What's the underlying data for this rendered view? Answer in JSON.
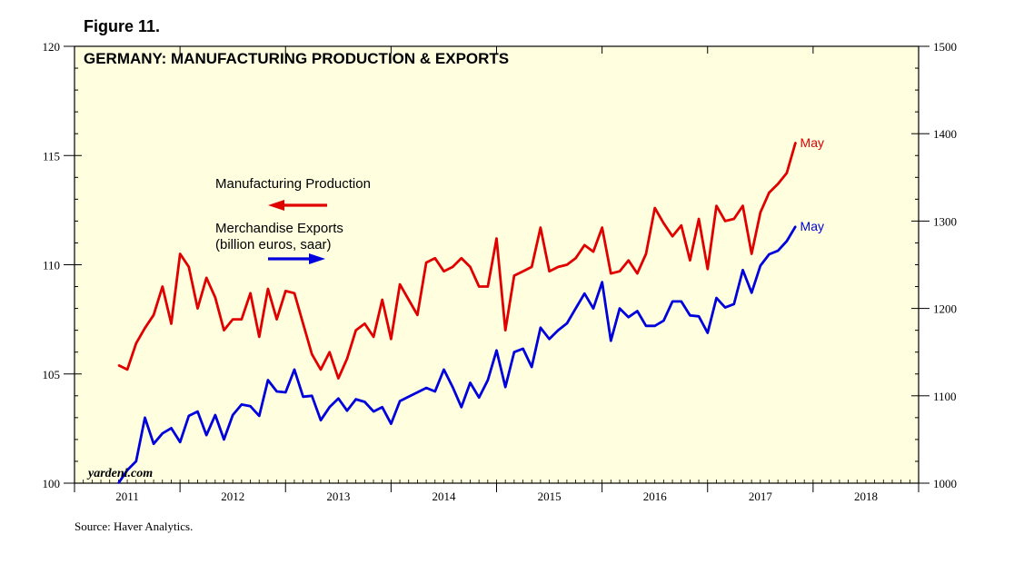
{
  "figure_label": "Figure 11.",
  "source": "Source: Haver Analytics.",
  "watermark": "yardeni.com",
  "chart_data": {
    "type": "line",
    "title": "GERMANY: MANUFACTURING PRODUCTION & EXPORTS",
    "x_start": 2010.917,
    "x_range": [
      2010.5,
      2018.5
    ],
    "year_ticks": [
      2011,
      2012,
      2013,
      2014,
      2015,
      2016,
      2017,
      2018
    ],
    "y_left": {
      "range": [
        100,
        120
      ],
      "ticks": [
        100,
        105,
        110,
        115,
        120
      ],
      "minor_step": 1
    },
    "y_right": {
      "range": [
        1000,
        1500
      ],
      "ticks": [
        1000,
        1100,
        1200,
        1300,
        1400,
        1500
      ],
      "minor_step": 25
    },
    "colors": {
      "production": "#e00000",
      "exports": "#0000dd",
      "plot_bg": "#ffffe0"
    },
    "legend": {
      "production": "Manufacturing Production",
      "exports_line1": "Merchandise Exports",
      "exports_line2": "(billion euros, saar)"
    },
    "series": [
      {
        "name": "Manufacturing Production",
        "axis": "left",
        "end_label": "May",
        "values": [
          105.4,
          105.2,
          106.4,
          107.1,
          107.7,
          109.0,
          107.3,
          110.5,
          109.9,
          108.0,
          109.4,
          108.5,
          107.0,
          107.5,
          107.5,
          108.7,
          106.7,
          108.9,
          107.5,
          108.8,
          108.7,
          107.3,
          105.9,
          105.2,
          106.0,
          104.8,
          105.7,
          107.0,
          107.3,
          106.7,
          108.4,
          106.6,
          109.1,
          108.4,
          107.7,
          110.1,
          110.3,
          109.7,
          109.9,
          110.3,
          109.9,
          109.0,
          109.0,
          111.2,
          107.0,
          109.5,
          109.7,
          109.9,
          111.7,
          109.7,
          109.9,
          110.0,
          110.3,
          110.9,
          110.6,
          111.7,
          109.6,
          109.7,
          110.2,
          109.6,
          110.5,
          112.6,
          111.9,
          111.3,
          111.8,
          110.2,
          112.1,
          109.8,
          112.7,
          112.0,
          112.1,
          112.7,
          110.5,
          112.4,
          113.3,
          113.7,
          114.2,
          115.6
        ]
      },
      {
        "name": "Merchandise Exports",
        "axis": "right",
        "end_label": "May",
        "values": [
          1000,
          1015,
          1025,
          1075,
          1045,
          1057,
          1063,
          1047,
          1077,
          1082,
          1055,
          1078,
          1050,
          1078,
          1090,
          1088,
          1077,
          1118,
          1105,
          1104,
          1130,
          1099,
          1100,
          1072,
          1087,
          1097,
          1083,
          1096,
          1093,
          1082,
          1087,
          1068,
          1094,
          1099,
          1104,
          1109,
          1105,
          1130,
          1110,
          1087,
          1115,
          1098,
          1118,
          1152,
          1110,
          1150,
          1154,
          1133,
          1178,
          1165,
          1175,
          1183,
          1200,
          1217,
          1200,
          1230,
          1163,
          1200,
          1190,
          1197,
          1180,
          1180,
          1186,
          1208,
          1208,
          1192,
          1191,
          1172,
          1212,
          1201,
          1205,
          1244,
          1218,
          1249,
          1262,
          1266,
          1277,
          1294
        ]
      }
    ]
  }
}
